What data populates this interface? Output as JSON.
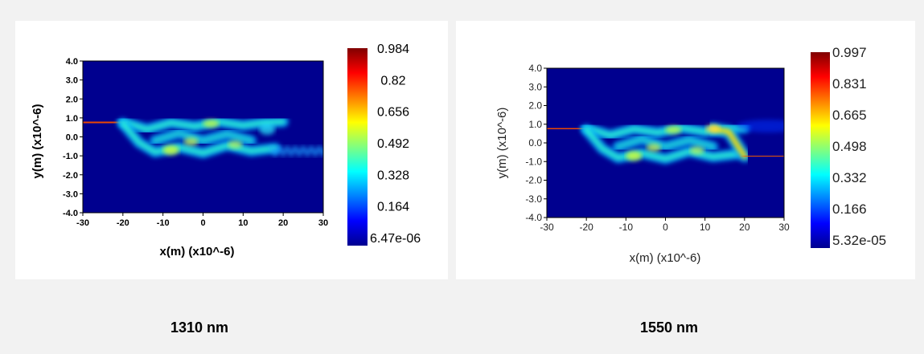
{
  "chart_data": [
    {
      "type": "heatmap",
      "title": "",
      "caption": "1310 nm",
      "xlabel": "x(m) (x10^-6)",
      "ylabel": "y(m) (x10^-6)",
      "xlim": [
        -30,
        30
      ],
      "ylim": [
        -4,
        4
      ],
      "x_ticks": [
        "-30",
        "-20",
        "-10",
        "0",
        "10",
        "20",
        "30"
      ],
      "y_ticks": [
        "4.0",
        "3.0",
        "2.0",
        "1.0",
        "0.0",
        "-1.0",
        "-2.0",
        "-3.0",
        "-4.0"
      ],
      "colorbar_labels": [
        "0.984",
        "0.82",
        "0.656",
        "0.492",
        "0.328",
        "0.164",
        "6.47e-06"
      ],
      "colorbar_range": [
        6.47e-06,
        0.984
      ],
      "colormap": "jet",
      "label_style": "bold"
    },
    {
      "type": "heatmap",
      "title": "",
      "caption": "1550 nm",
      "xlabel": "x(m) (x10^-6)",
      "ylabel": "y(m) (x10^-6)",
      "xlim": [
        -30,
        30
      ],
      "ylim": [
        -4,
        4
      ],
      "x_ticks": [
        "-30",
        "-20",
        "-10",
        "0",
        "10",
        "20",
        "30"
      ],
      "y_ticks": [
        "4.0",
        "3.0",
        "2.0",
        "1.0",
        "0.0",
        "-1.0",
        "-2.0",
        "-3.0",
        "-4.0"
      ],
      "colorbar_labels": [
        "0.997",
        "0.831",
        "0.665",
        "0.498",
        "0.332",
        "0.166",
        "5.32e-05"
      ],
      "colorbar_range": [
        5.32e-05,
        0.997
      ],
      "colormap": "jet",
      "label_style": "normal"
    }
  ]
}
